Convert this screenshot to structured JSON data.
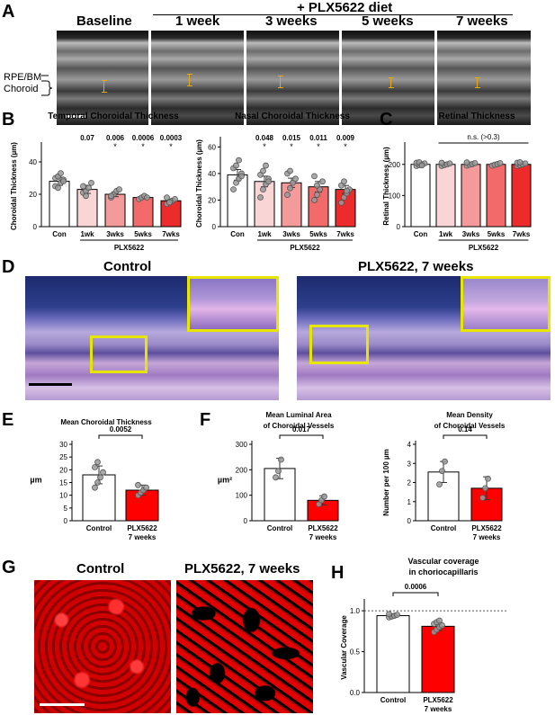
{
  "panelA": {
    "label": "A",
    "diet_header": "+ PLX5622 diet",
    "timepoints": [
      "Baseline",
      "1 week",
      "3 weeks",
      "5 weeks",
      "7 weeks"
    ],
    "layer_labels": [
      "RPE/BM",
      "Choroid"
    ]
  },
  "panelB": {
    "label": "B"
  },
  "panelC": {
    "label": "C"
  },
  "panelD": {
    "label": "D",
    "titles": [
      "Control",
      "PLX5622, 7 weeks"
    ]
  },
  "panelE": {
    "label": "E"
  },
  "panelF": {
    "label": "F"
  },
  "panelG": {
    "label": "G",
    "titles": [
      "Control",
      "PLX5622, 7 weeks"
    ]
  },
  "panelH": {
    "label": "H"
  },
  "colors": {
    "con": "#ffffff",
    "wk1": "#f9d5d5",
    "wk3": "#f59a9a",
    "wk5": "#f26a6a",
    "wk7": "#ee2b2b",
    "red": "#ff0000",
    "yellow": "#e6e600"
  },
  "chart_data": [
    {
      "id": "B1",
      "type": "bar",
      "title": "Temporal Choroidal Thickness",
      "ylabel": "Choroidal Thickness (µm)",
      "ylim": [
        0,
        50
      ],
      "yticks": [
        0,
        20,
        40
      ],
      "categories": [
        "Con",
        "1wk",
        "3wks",
        "5wks",
        "7wks"
      ],
      "group_label": "PLX5622",
      "values": [
        28,
        23,
        20,
        18,
        16
      ],
      "errors": [
        2.5,
        2.5,
        1.5,
        0.8,
        1
      ],
      "pvalues": [
        "",
        "0.07",
        "0.006",
        "0.0006",
        "0.0003"
      ],
      "stars": [
        "",
        "",
        "*",
        "*",
        "*"
      ],
      "points": [
        [
          25,
          24,
          27,
          29,
          30,
          31,
          33,
          28
        ],
        [
          21,
          22,
          24,
          27,
          25,
          19
        ],
        [
          18,
          20,
          22,
          23,
          19
        ],
        [
          17,
          18,
          19,
          18
        ],
        [
          14,
          15,
          16,
          17,
          18,
          15
        ]
      ]
    },
    {
      "id": "B2",
      "type": "bar",
      "title": "Nasal Choroidal Thickness",
      "ylabel": "Choroidal Thickness (µm)",
      "ylim": [
        0,
        65
      ],
      "yticks": [
        0,
        20,
        40,
        60
      ],
      "categories": [
        "Con",
        "1wk",
        "3wks",
        "5wks",
        "7wks"
      ],
      "group_label": "PLX5622",
      "values": [
        39,
        34,
        33,
        30,
        28
      ],
      "errors": [
        4,
        4,
        3.5,
        4,
        3
      ],
      "pvalues": [
        "",
        "0.048",
        "0.015",
        "0.011",
        "0.009"
      ],
      "stars": [
        "",
        "*",
        "*",
        "*",
        "*"
      ],
      "points": [
        [
          28,
          33,
          36,
          40,
          44,
          46,
          50,
          38
        ],
        [
          22,
          28,
          32,
          36,
          39,
          42,
          46,
          34
        ],
        [
          24,
          29,
          33,
          36,
          40,
          42
        ],
        [
          20,
          24,
          28,
          34,
          38,
          31
        ],
        [
          18,
          22,
          25,
          28,
          31,
          34,
          27
        ]
      ]
    },
    {
      "id": "C",
      "type": "bar",
      "title": "Retinal Thickness",
      "ylabel": "Retinal Thickness (µm)",
      "ylim": [
        0,
        260
      ],
      "yticks": [
        0,
        100,
        200
      ],
      "categories": [
        "Con",
        "1wk",
        "3wks",
        "5wks",
        "7wks"
      ],
      "group_label": "PLX5622",
      "values": [
        200,
        200,
        200,
        200,
        200
      ],
      "errors": [
        4,
        4,
        4,
        4,
        4
      ],
      "annotation": "n.s. (>0.3)",
      "points": [
        [
          195,
          198,
          200,
          203,
          205,
          207,
          197
        ],
        [
          195,
          198,
          200,
          203,
          205
        ],
        [
          196,
          199,
          201,
          204,
          206
        ],
        [
          196,
          199,
          201,
          204
        ],
        [
          195,
          198,
          200,
          203,
          205,
          207
        ]
      ]
    },
    {
      "id": "E",
      "type": "bar",
      "title": "Mean Choroidal Thickness",
      "ylabel": "µm",
      "ylim": [
        0,
        30
      ],
      "yticks": [
        0,
        5,
        10,
        15,
        20,
        25,
        30
      ],
      "categories": [
        "Control",
        "PLX5622\n7 weeks"
      ],
      "values": [
        18,
        12
      ],
      "errors": [
        3.5,
        2
      ],
      "pvalue": "0.0052",
      "points": [
        [
          13,
          15,
          17,
          19,
          21,
          23
        ],
        [
          10,
          11,
          12,
          13,
          14
        ]
      ]
    },
    {
      "id": "F1",
      "type": "bar",
      "title": "Mean Luminal Area\nof Choroidal Vessels",
      "ylabel": "µm²",
      "ylim": [
        0,
        300
      ],
      "yticks": [
        0,
        100,
        200,
        300
      ],
      "categories": [
        "Control",
        "PLX5622\n7 weeks"
      ],
      "values": [
        205,
        80
      ],
      "errors": [
        40,
        18
      ],
      "pvalue": "0.017",
      "points": [
        [
          170,
          195,
          240
        ],
        [
          65,
          80,
          95
        ]
      ]
    },
    {
      "id": "F2",
      "type": "bar",
      "title": "Mean Density\nof Choroidal Vessels",
      "ylabel": "Number per 100 µm",
      "ylim": [
        0,
        4
      ],
      "yticks": [
        0,
        1,
        2,
        3,
        4
      ],
      "categories": [
        "Control",
        "PLX5622\n7 weeks"
      ],
      "values": [
        2.55,
        1.7
      ],
      "errors": [
        0.55,
        0.6
      ],
      "pvalue": "0.14",
      "points": [
        [
          1.9,
          2.6,
          3.1
        ],
        [
          1.2,
          1.7,
          2.2
        ]
      ]
    },
    {
      "id": "H",
      "type": "bar",
      "title": "Vascular coverage\nin choriocapillaris",
      "ylabel": "Vascular Coverage",
      "ylim": [
        0,
        1.1
      ],
      "yticks": [
        0,
        0.5,
        1
      ],
      "ytick_labels": [
        "0.0",
        "0.5",
        "1.0"
      ],
      "reference_line": 1.0,
      "categories": [
        "Control",
        "PLX5622\n7 weeks"
      ],
      "values": [
        0.94,
        0.81
      ],
      "errors": [
        0.02,
        0.05
      ],
      "pvalue": "0.0006",
      "points": [
        [
          0.92,
          0.93,
          0.94,
          0.95,
          0.96
        ],
        [
          0.74,
          0.77,
          0.8,
          0.82,
          0.84,
          0.86,
          0.88
        ]
      ]
    }
  ]
}
